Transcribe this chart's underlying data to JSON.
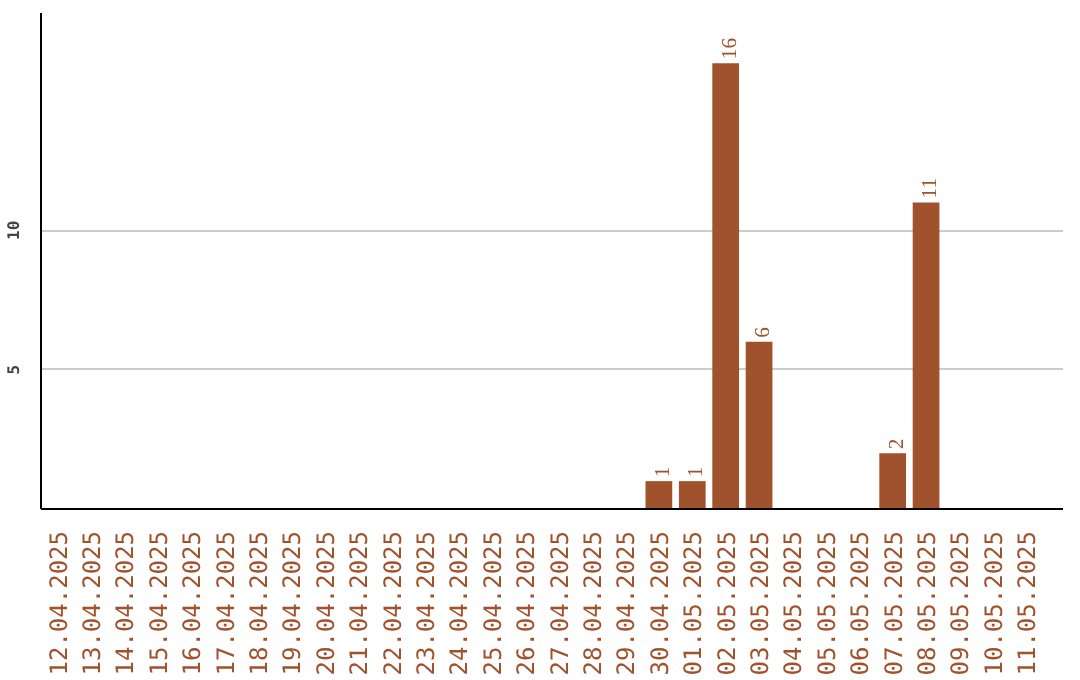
{
  "chart_data": {
    "type": "bar",
    "categories": [
      "12.04.2025",
      "13.04.2025",
      "14.04.2025",
      "15.04.2025",
      "16.04.2025",
      "17.04.2025",
      "18.04.2025",
      "19.04.2025",
      "20.04.2025",
      "21.04.2025",
      "22.04.2025",
      "23.04.2025",
      "24.04.2025",
      "25.04.2025",
      "26.04.2025",
      "27.04.2025",
      "28.04.2025",
      "29.04.2025",
      "30.04.2025",
      "01.05.2025",
      "02.05.2025",
      "03.05.2025",
      "04.05.2025",
      "05.05.2025",
      "06.05.2025",
      "07.05.2025",
      "08.05.2025",
      "09.05.2025",
      "10.05.2025",
      "11.05.2025"
    ],
    "values": [
      0,
      0,
      0,
      0,
      0,
      0,
      0,
      0,
      0,
      0,
      0,
      0,
      0,
      0,
      0,
      0,
      0,
      0,
      1,
      1,
      16,
      6,
      0,
      0,
      0,
      2,
      11,
      0,
      0,
      0
    ],
    "value_labels": [
      null,
      null,
      null,
      null,
      null,
      null,
      null,
      null,
      null,
      null,
      null,
      null,
      null,
      null,
      null,
      null,
      null,
      null,
      "1",
      "1",
      "16",
      "6",
      null,
      null,
      null,
      "2",
      "11",
      null,
      null,
      null
    ],
    "color": "#a0522d",
    "ylim": [
      0,
      17.8
    ],
    "yticks": [
      5,
      10
    ],
    "grid": "y"
  }
}
